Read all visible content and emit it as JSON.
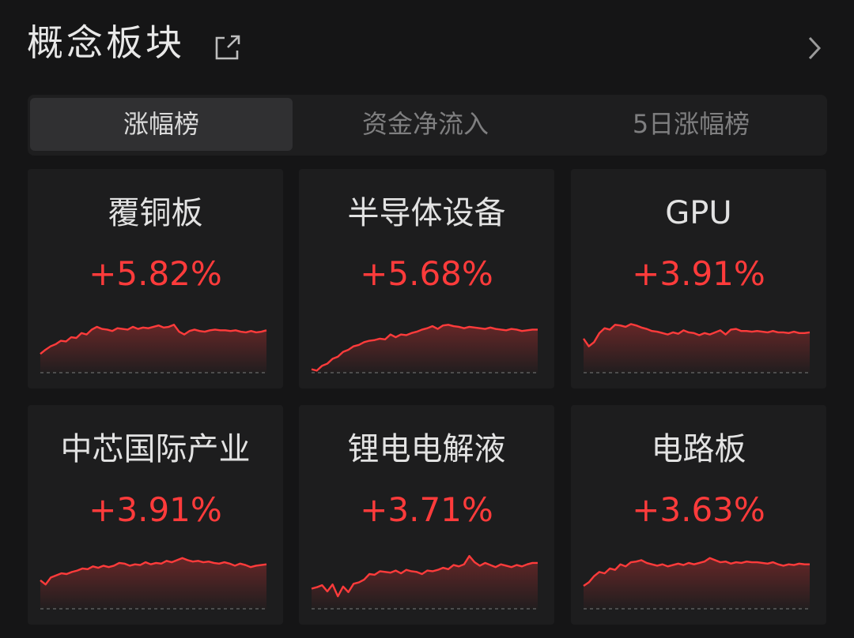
{
  "header": {
    "title": "概念板块"
  },
  "tabs": [
    {
      "label": "涨幅榜",
      "active": true
    },
    {
      "label": "资金净流入",
      "active": false
    },
    {
      "label": "5日涨幅榜",
      "active": false
    }
  ],
  "colors": {
    "up": "#ff3b3b",
    "background": "#151516",
    "card": "#1d1d1e"
  },
  "cards": [
    {
      "name": "覆铜板",
      "change": "+5.82%",
      "trend": [
        0.27,
        0.33,
        0.38,
        0.41,
        0.46,
        0.45,
        0.51,
        0.5,
        0.57,
        0.55,
        0.62,
        0.66,
        0.63,
        0.62,
        0.6,
        0.64,
        0.63,
        0.62,
        0.66,
        0.63,
        0.65,
        0.64,
        0.66,
        0.68,
        0.65,
        0.66,
        0.69,
        0.59,
        0.55,
        0.6,
        0.62,
        0.6,
        0.59,
        0.61,
        0.62,
        0.61,
        0.61,
        0.6,
        0.61,
        0.59,
        0.58,
        0.6,
        0.58,
        0.59,
        0.61
      ]
    },
    {
      "name": "半导体设备",
      "change": "+5.68%",
      "trend": [
        0.05,
        0.03,
        0.1,
        0.13,
        0.2,
        0.23,
        0.3,
        0.33,
        0.38,
        0.4,
        0.44,
        0.46,
        0.47,
        0.49,
        0.48,
        0.55,
        0.51,
        0.55,
        0.54,
        0.57,
        0.59,
        0.62,
        0.64,
        0.67,
        0.63,
        0.68,
        0.69,
        0.67,
        0.66,
        0.64,
        0.66,
        0.65,
        0.64,
        0.63,
        0.65,
        0.63,
        0.62,
        0.61,
        0.63,
        0.62,
        0.6,
        0.61,
        0.62,
        0.62
      ]
    },
    {
      "name": "GPU",
      "change": "+3.91%",
      "trend": [
        0.49,
        0.38,
        0.44,
        0.57,
        0.64,
        0.62,
        0.69,
        0.68,
        0.66,
        0.7,
        0.68,
        0.65,
        0.63,
        0.6,
        0.59,
        0.57,
        0.55,
        0.58,
        0.56,
        0.61,
        0.58,
        0.57,
        0.54,
        0.57,
        0.55,
        0.58,
        0.61,
        0.55,
        0.62,
        0.63,
        0.6,
        0.6,
        0.59,
        0.6,
        0.59,
        0.58,
        0.6,
        0.58,
        0.58,
        0.57,
        0.59,
        0.57,
        0.57,
        0.58
      ]
    },
    {
      "name": "中芯国际产业",
      "change": "+3.91%",
      "trend": [
        0.41,
        0.35,
        0.45,
        0.48,
        0.51,
        0.5,
        0.53,
        0.55,
        0.58,
        0.57,
        0.61,
        0.59,
        0.62,
        0.6,
        0.62,
        0.66,
        0.65,
        0.62,
        0.64,
        0.63,
        0.67,
        0.64,
        0.66,
        0.65,
        0.69,
        0.67,
        0.7,
        0.73,
        0.7,
        0.68,
        0.69,
        0.67,
        0.68,
        0.66,
        0.65,
        0.67,
        0.65,
        0.62,
        0.65,
        0.63,
        0.6,
        0.62,
        0.63,
        0.64
      ]
    },
    {
      "name": "锂电电解液",
      "change": "+3.71%",
      "trend": [
        0.29,
        0.31,
        0.34,
        0.25,
        0.35,
        0.18,
        0.32,
        0.24,
        0.36,
        0.38,
        0.42,
        0.5,
        0.49,
        0.54,
        0.53,
        0.52,
        0.55,
        0.51,
        0.56,
        0.54,
        0.53,
        0.5,
        0.55,
        0.54,
        0.56,
        0.59,
        0.57,
        0.63,
        0.61,
        0.64,
        0.76,
        0.67,
        0.62,
        0.66,
        0.63,
        0.6,
        0.64,
        0.62,
        0.6,
        0.63,
        0.61,
        0.64,
        0.66,
        0.66
      ]
    },
    {
      "name": "电路板",
      "change": "+3.63%",
      "trend": [
        0.33,
        0.38,
        0.47,
        0.53,
        0.51,
        0.58,
        0.56,
        0.64,
        0.61,
        0.67,
        0.68,
        0.7,
        0.66,
        0.64,
        0.62,
        0.64,
        0.61,
        0.63,
        0.65,
        0.63,
        0.66,
        0.64,
        0.66,
        0.68,
        0.73,
        0.7,
        0.67,
        0.68,
        0.65,
        0.67,
        0.66,
        0.68,
        0.67,
        0.67,
        0.66,
        0.65,
        0.67,
        0.64,
        0.62,
        0.64,
        0.63,
        0.65,
        0.64,
        0.64
      ]
    }
  ]
}
